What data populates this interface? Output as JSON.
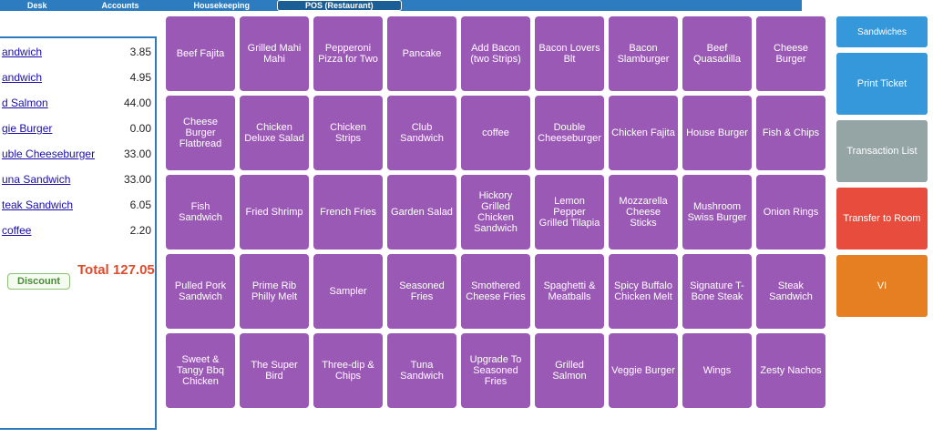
{
  "nav": {
    "tabs": [
      "Desk",
      "Accounts",
      "Housekeeping",
      "POS (Restaurant)"
    ]
  },
  "order": {
    "items": [
      {
        "name": "andwich",
        "price": "3.85"
      },
      {
        "name": "andwich",
        "price": "4.95"
      },
      {
        "name": "d Salmon",
        "price": "44.00"
      },
      {
        "name": "gie Burger",
        "price": "0.00"
      },
      {
        "name": "uble Cheeseburger",
        "price": "33.00"
      },
      {
        "name": "una Sandwich",
        "price": "33.00"
      },
      {
        "name": "teak Sandwich",
        "price": "6.05"
      },
      {
        "name": "coffee",
        "price": "2.20"
      }
    ],
    "discount": "Discount",
    "total": "Total 127.05"
  },
  "menu": {
    "items": [
      "Beef Fajita",
      "Grilled Mahi Mahi",
      "Pepperoni Pizza for Two",
      "Pancake",
      "Add Bacon (two Strips)",
      "Bacon Lovers Blt",
      "Bacon Slamburger",
      "Beef Quasadilla",
      "Cheese Burger",
      "Cheese Burger Flatbread",
      "Chicken Deluxe Salad",
      "Chicken Strips",
      "Club Sandwich",
      "coffee",
      "Double Cheeseburger",
      "Chicken Fajita",
      "House Burger",
      "Fish & Chips",
      "Fish Sandwich",
      "Fried Shrimp",
      "French Fries",
      "Garden Salad",
      "Hickory Grilled Chicken Sandwich",
      "Lemon Pepper Grilled Tilapia",
      "Mozzarella Cheese Sticks",
      "Mushroom Swiss Burger",
      "Onion Rings",
      "Pulled Pork Sandwich",
      "Prime Rib Philly Melt",
      "Sampler",
      "Seasoned Fries",
      "Smothered Cheese Fries",
      "Spaghetti & Meatballs",
      "Spicy Buffalo Chicken Melt",
      "Signature T-Bone Steak",
      "Steak Sandwich",
      "Sweet & Tangy Bbq Chicken",
      "The Super Bird",
      "Three-dip & Chips",
      "Tuna Sandwich",
      "Upgrade To Seasoned Fries",
      "Grilled Salmon",
      "Veggie Burger",
      "Wings",
      "Zesty Nachos"
    ]
  },
  "categories": [
    "Sandwiches"
  ],
  "actions": [
    "Print Ticket",
    "Transaction List",
    "Transfer to Room",
    "VI"
  ]
}
